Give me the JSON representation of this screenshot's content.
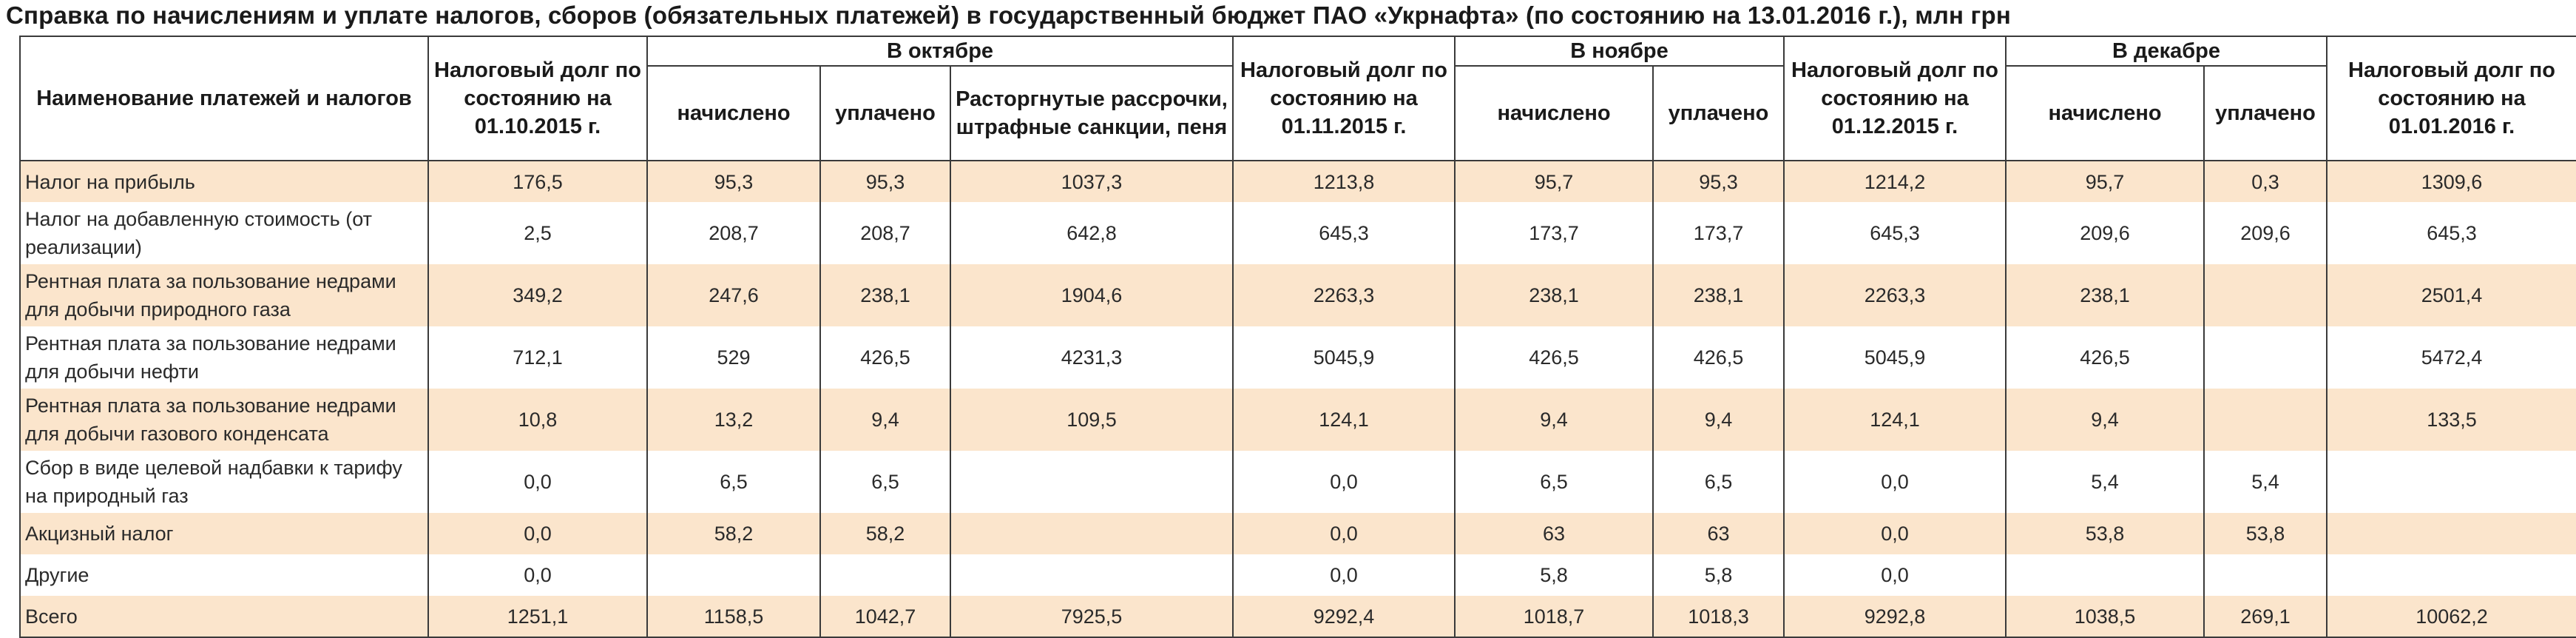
{
  "title": "Справка по начислениям и уплате налогов, сборов (обязательных платежей) в государственный бюджет ПАО «Укрнафта» (по состоянию на 13.01.2016 г.), млн грн",
  "header": {
    "name": "Наименование платежей и налогов",
    "debt_oct1": "Налоговый долг по состоянию на 01.10.2015 г.",
    "october": "В октябре",
    "debt_nov1": "Налоговый долг по состоянию на 01.11.2015 г.",
    "november": "В ноябре",
    "debt_dec1": "Налоговый долг по состоянию на 01.12.2015 г.",
    "december": "В декабре",
    "debt_jan1": "Налоговый долг по состоянию на 01.01.2016 г.",
    "accrued": "начислено",
    "paid": "уплачено",
    "terminated": "Расторгнутые рассрочки, штрафные санкции, пеня"
  },
  "rows": [
    {
      "name": "Налог на прибыль",
      "d1": "176,5",
      "oa": "95,3",
      "op": "95,3",
      "ot": "1037,3",
      "d2": "1213,8",
      "na": "95,7",
      "np": "95,3",
      "d3": "1214,2",
      "da": "95,7",
      "dp": "0,3",
      "d4": "1309,6"
    },
    {
      "name": "Налог на добавленную стоимость (от реализации)",
      "d1": "2,5",
      "oa": "208,7",
      "op": "208,7",
      "ot": "642,8",
      "d2": "645,3",
      "na": "173,7",
      "np": "173,7",
      "d3": "645,3",
      "da": "209,6",
      "dp": "209,6",
      "d4": "645,3"
    },
    {
      "name": "Рентная плата за пользование недрами для добычи природного газа",
      "d1": "349,2",
      "oa": "247,6",
      "op": "238,1",
      "ot": "1904,6",
      "d2": "2263,3",
      "na": "238,1",
      "np": "238,1",
      "d3": "2263,3",
      "da": "238,1",
      "dp": "",
      "d4": "2501,4"
    },
    {
      "name": "Рентная плата за пользование недрами для добычи нефти",
      "d1": "712,1",
      "oa": "529",
      "op": "426,5",
      "ot": "4231,3",
      "d2": "5045,9",
      "na": "426,5",
      "np": "426,5",
      "d3": "5045,9",
      "da": "426,5",
      "dp": "",
      "d4": "5472,4"
    },
    {
      "name": "Рентная плата за пользование недрами для добычи газового конденсата",
      "d1": "10,8",
      "oa": "13,2",
      "op": "9,4",
      "ot": "109,5",
      "d2": "124,1",
      "na": "9,4",
      "np": "9,4",
      "d3": "124,1",
      "da": "9,4",
      "dp": "",
      "d4": "133,5"
    },
    {
      "name": "Сбор в виде целевой надбавки к тарифу на природный газ",
      "d1": "0,0",
      "oa": "6,5",
      "op": "6,5",
      "ot": "",
      "d2": "0,0",
      "na": "6,5",
      "np": "6,5",
      "d3": "0,0",
      "da": "5,4",
      "dp": "5,4",
      "d4": ""
    },
    {
      "name": "Акцизный налог",
      "d1": "0,0",
      "oa": "58,2",
      "op": "58,2",
      "ot": "",
      "d2": "0,0",
      "na": "63",
      "np": "63",
      "d3": "0,0",
      "da": "53,8",
      "dp": "53,8",
      "d4": ""
    },
    {
      "name": "Другие",
      "d1": "0,0",
      "oa": "",
      "op": "",
      "ot": "",
      "d2": "0,0",
      "na": "5,8",
      "np": "5,8",
      "d3": "0,0",
      "da": "",
      "dp": "",
      "d4": ""
    },
    {
      "name": "Всего",
      "d1": "1251,1",
      "oa": "1158,5",
      "op": "1042,7",
      "ot": "7925,5",
      "d2": "9292,4",
      "na": "1018,7",
      "np": "1018,3",
      "d3": "9292,8",
      "da": "1038,5",
      "dp": "269,1",
      "d4": "10062,2"
    }
  ],
  "colors": {
    "band": "#fbe5cc",
    "border": "#3a3a3a"
  }
}
